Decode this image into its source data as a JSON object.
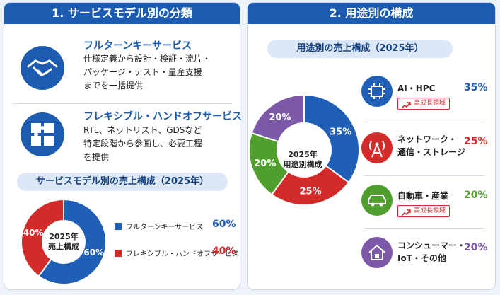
{
  "left": {
    "title": "1. サービスモデル別の分類",
    "services": [
      {
        "name": "フルターンキーサービス",
        "desc": "仕様定義から設計・検証・流片・\nパッケージ・テスト・量産支援\nまでを一括提供"
      },
      {
        "name": "フレキシブル・ハンドオフサービス",
        "desc": "RTL、ネットリスト、GDSなど\n特定段階から参画し、必要工程\nを提供"
      }
    ]
  },
  "right": {
    "title": "2. 用途別の構成"
  },
  "chart_data": [
    {
      "type": "pie",
      "title": "サービスモデル別の売上構成（2025年）",
      "center_label": "2025年\n売上構成",
      "categories": [
        "フルターンキーサービス",
        "フレキシブル・ハンドオフサービス"
      ],
      "values": [
        60,
        40
      ],
      "value_labels": [
        "60%",
        "40%"
      ],
      "colors": [
        "#1f5fb5",
        "#d32a2a"
      ]
    },
    {
      "type": "pie",
      "title": "用途別の売上構成（2025年）",
      "center_label": "2025年\n用途別構成",
      "categories": [
        "AI・HPC",
        "ネットワーク・\n通信・ストレージ",
        "自動車・産業",
        "コンシューマー・\nIoT・その他"
      ],
      "values": [
        35,
        25,
        20,
        20
      ],
      "value_labels": [
        "35%",
        "25%",
        "20%",
        "20%"
      ],
      "colors": [
        "#1f5fb5",
        "#d32a2a",
        "#4f9e2e",
        "#7b58a8"
      ],
      "tags": [
        "高成長領域",
        null,
        "高成長領域",
        null
      ]
    }
  ]
}
